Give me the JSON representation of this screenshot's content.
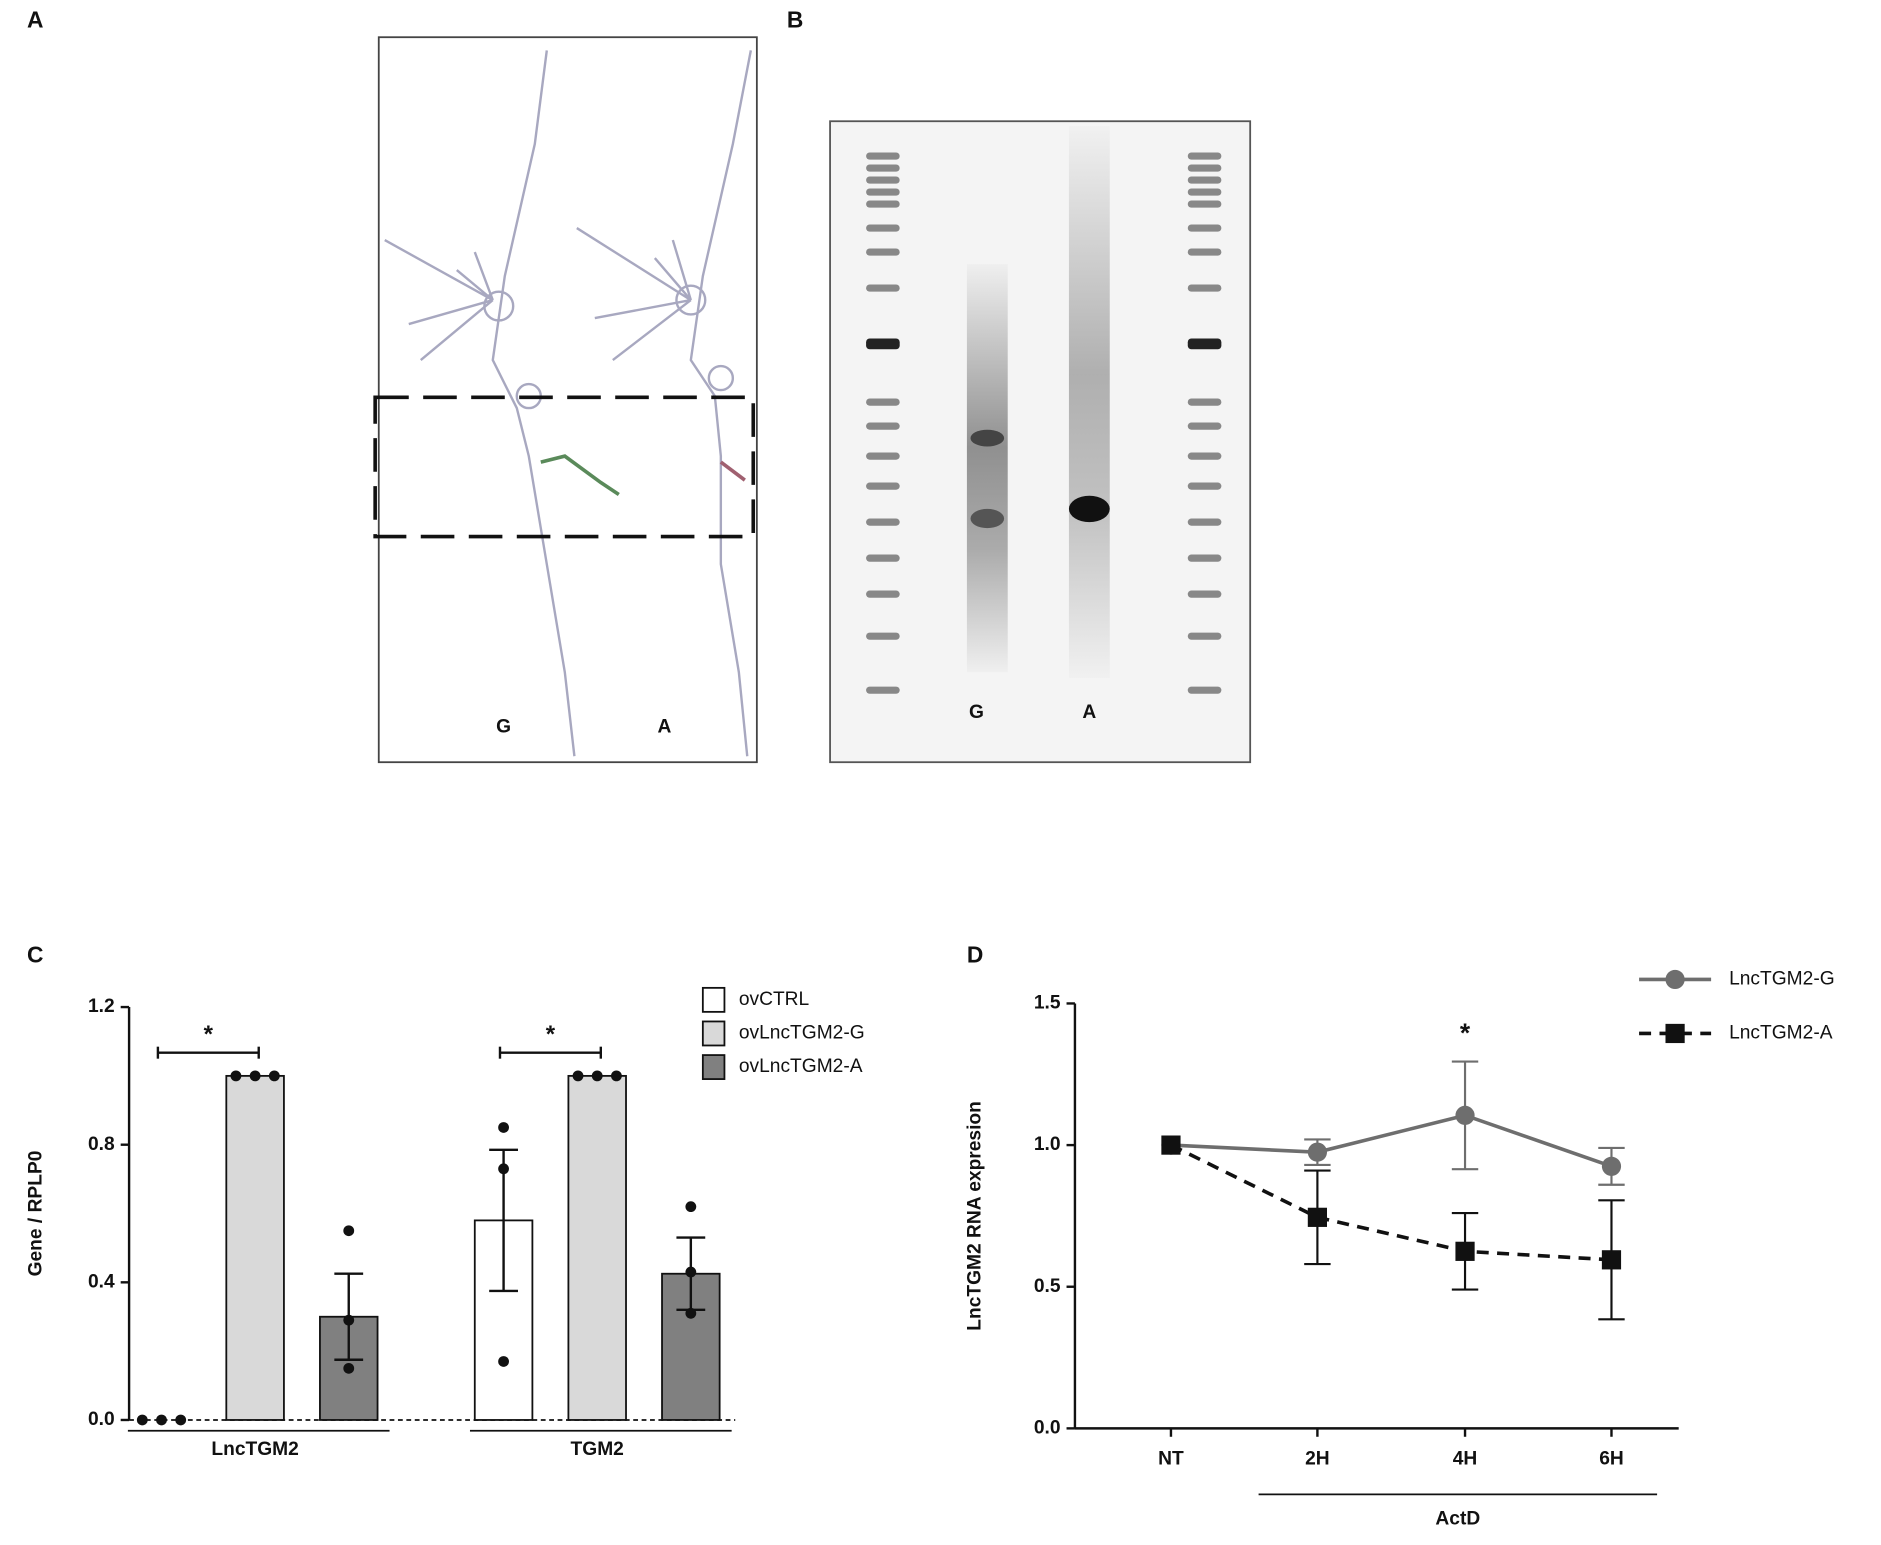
{
  "panel_a": {
    "label": "A",
    "lanes": [
      "G",
      "A"
    ]
  },
  "panel_b": {
    "label": "B",
    "lanes": [
      "G",
      "A"
    ]
  },
  "chart_data": [
    {
      "type": "bar",
      "panel": "C",
      "ylabel": "Gene / RPLP0",
      "categories": [
        "LncTGM2",
        "TGM2"
      ],
      "series": [
        {
          "name": "ovCTRL",
          "color": "#ffffff",
          "values": [
            0,
            0.58
          ],
          "errors": [
            0,
            0.205
          ],
          "points": [
            [
              0,
              0,
              0
            ],
            [
              0.85,
              0.73,
              0.17
            ]
          ]
        },
        {
          "name": "ovLncTGM2-G",
          "color": "#d9d9d9",
          "values": [
            1.0,
            1.0
          ],
          "errors": [
            0,
            0
          ],
          "points": [
            [
              1,
              1,
              1
            ],
            [
              1,
              1,
              1
            ]
          ]
        },
        {
          "name": "ovLncTGM2-A",
          "color": "#808080",
          "values": [
            0.3,
            0.425
          ],
          "errors": [
            0.125,
            0.105
          ],
          "points": [
            [
              0.55,
              0.29,
              0.15
            ],
            [
              0.62,
              0.43,
              0.31
            ]
          ]
        }
      ],
      "annotations": [
        "*",
        "*"
      ],
      "ylim": [
        0,
        1.2
      ],
      "yticks": [
        {
          "value": 0,
          "label": "0.0"
        },
        {
          "value": 0.4,
          "label": "0.4"
        },
        {
          "value": 0.8,
          "label": "0.8"
        },
        {
          "value": 1.2,
          "label": "1.2"
        }
      ],
      "legend": "top-right"
    },
    {
      "type": "line",
      "panel": "D",
      "ylabel": "LncTGM2 RNA expresion",
      "categories": [
        "NT",
        "2H",
        "4H",
        "6H"
      ],
      "x_group_label": "ActD",
      "series": [
        {
          "name": "LncTGM2-G",
          "color": "#6e6e6e",
          "marker": "circle",
          "dash": false,
          "values": [
            1.0,
            0.975,
            1.105,
            0.925
          ],
          "errors": [
            0,
            0.045,
            0.19,
            0.065
          ]
        },
        {
          "name": "LncTGM2-A",
          "color": "#111111",
          "marker": "square",
          "dash": true,
          "values": [
            1.0,
            0.745,
            0.625,
            0.595
          ],
          "errors": [
            0,
            0.165,
            0.135,
            0.21
          ]
        }
      ],
      "annotation": "*",
      "ylim": [
        0,
        1.5
      ],
      "yticks": [
        {
          "value": 0,
          "label": "0.0"
        },
        {
          "value": 0.5,
          "label": "0.5"
        },
        {
          "value": 1.0,
          "label": "1.0"
        },
        {
          "value": 1.5,
          "label": "1.5"
        }
      ],
      "legend": "top-right"
    }
  ]
}
